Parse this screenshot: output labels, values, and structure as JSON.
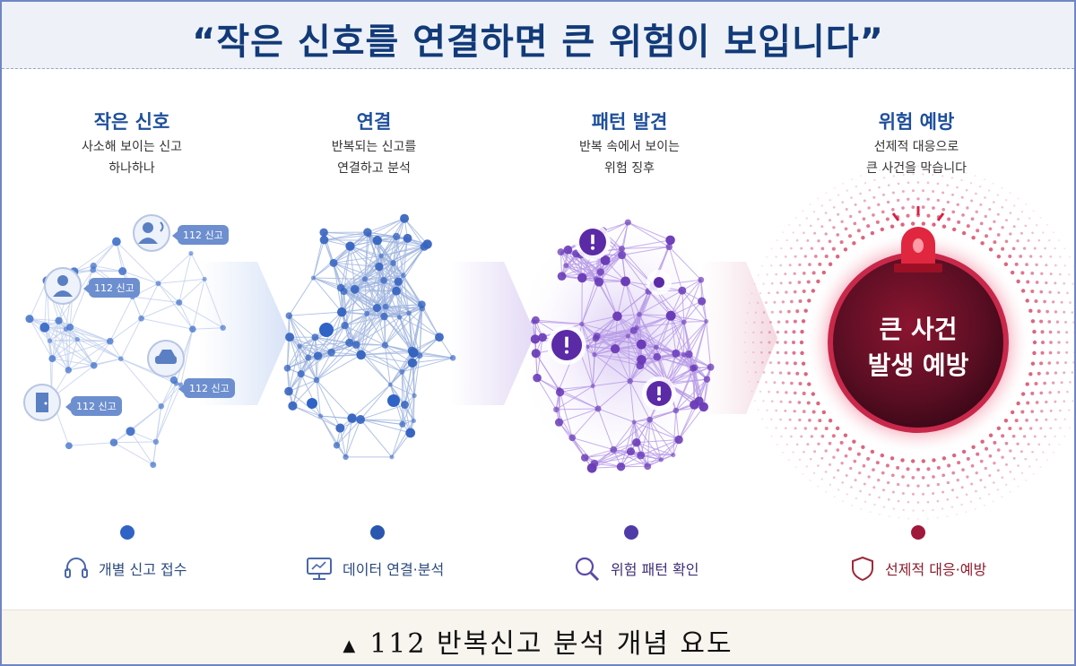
{
  "header": {
    "title": "“작은 신호를 연결하면 큰 위험이 보입니다”"
  },
  "stages": [
    {
      "title": "작은 신호",
      "desc_line1": "사소해 보이는 신고",
      "desc_line2": "하나하나",
      "color": "#1e4f9c"
    },
    {
      "title": "연결",
      "desc_line1": "반복되는 신고를",
      "desc_line2": "연결하고 분석",
      "color": "#1e4f9c"
    },
    {
      "title": "패턴 발견",
      "desc_line1": "반복 속에서 보이는",
      "desc_line2": "위험 징후",
      "color": "#1e4f9c"
    },
    {
      "title": "위험 예방",
      "desc_line1": "선제적 대응으로",
      "desc_line2": "큰 사건을 막습니다",
      "color": "#1e4f9c"
    }
  ],
  "report_bubbles": [
    "112 신고",
    "112 신고",
    "112 신고",
    "112 신고"
  ],
  "alarm_circle": {
    "line1": "큰 사건",
    "line2": "발생 예방"
  },
  "timeline": [
    {
      "label": "개별 신고 접수",
      "icon": "headset-icon",
      "color": "#2b4a7e"
    },
    {
      "label": "데이터 연결·분석",
      "icon": "monitor-icon",
      "color": "#2b4a7e"
    },
    {
      "label": "위험 패턴 확인",
      "icon": "magnifier-icon",
      "color": "#3e2f78"
    },
    {
      "label": "선제적 대응·예방",
      "icon": "shield-icon",
      "color": "#8a1f2e"
    }
  ],
  "colors": {
    "blue": "#2f63c6",
    "purple": "#6a3bb7",
    "red": "#b0142d"
  },
  "footer": {
    "caption": "112 반복신고 분석 개념 요도",
    "marker": "▲"
  }
}
